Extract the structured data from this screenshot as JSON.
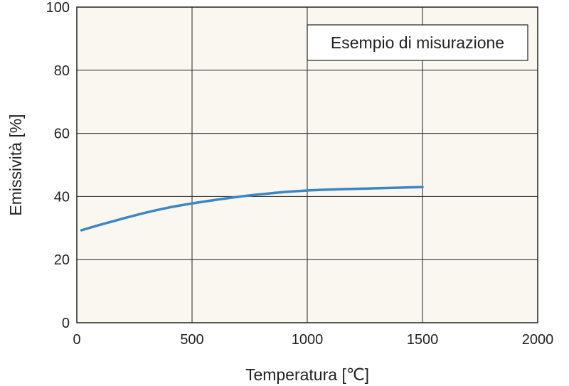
{
  "chart_data": {
    "type": "line",
    "xlabel": "Temperatura [℃]",
    "ylabel": "Emissività [%]",
    "xlim": [
      0,
      2000
    ],
    "ylim": [
      0,
      100
    ],
    "xticks": [
      "0",
      "500",
      "1000",
      "1500",
      "2000"
    ],
    "yticks": [
      "0",
      "20",
      "40",
      "60",
      "80",
      "100"
    ],
    "grid": true,
    "legend_position": "top-right",
    "plot_background": "#faf7f1",
    "series": [
      {
        "name": "Esempio di misurazione",
        "color": "#3a87c2",
        "x": [
          20,
          100,
          200,
          300,
          400,
          500,
          600,
          700,
          800,
          900,
          1000,
          1100,
          1200,
          1300,
          1400,
          1500
        ],
        "y": [
          29.3,
          31.0,
          33.0,
          34.9,
          36.5,
          37.8,
          38.9,
          39.9,
          40.7,
          41.4,
          41.9,
          42.2,
          42.4,
          42.6,
          42.8,
          43.0
        ]
      }
    ]
  }
}
